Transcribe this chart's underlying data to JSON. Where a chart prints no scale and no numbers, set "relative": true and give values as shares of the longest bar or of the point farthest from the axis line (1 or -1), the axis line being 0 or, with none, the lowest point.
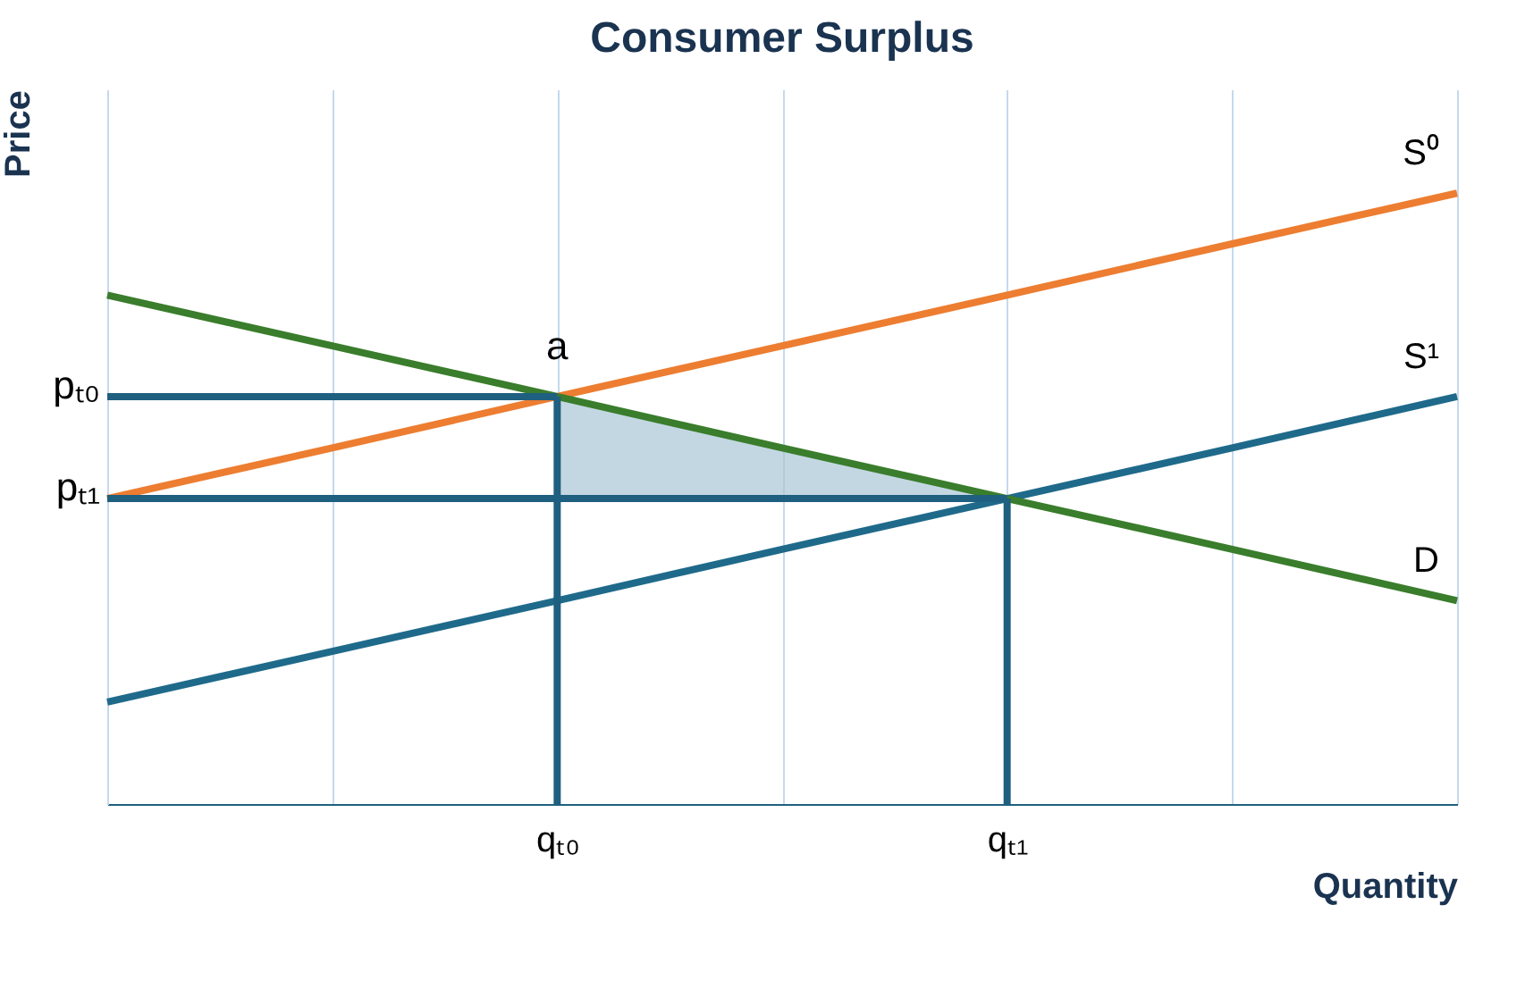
{
  "chart_data": {
    "type": "line",
    "title": "Consumer Surplus",
    "xlabel": "Quantity",
    "ylabel": "Price",
    "relative": true,
    "grid": "x",
    "categories": [
      null,
      null,
      "qₜ₀",
      null,
      "qₜ₁",
      null,
      null
    ],
    "series": [
      {
        "name": "S⁰",
        "color": "#ed7d31",
        "values": [
          0.5,
          0.583,
          0.667,
          0.75,
          0.833,
          0.917,
          1
        ]
      },
      {
        "name": "S¹",
        "color": "#1f6a8a",
        "values": [
          0.167,
          0.25,
          0.333,
          0.417,
          0.5,
          0.583,
          0.667
        ]
      },
      {
        "name": "D",
        "color": "#3a7d2c",
        "values": [
          0.833,
          0.75,
          0.667,
          0.583,
          0.5,
          0.417,
          0.333
        ]
      },
      {
        "name": "pₜ₀",
        "color": "#1f5f7f",
        "values": [
          0.667,
          0.667,
          0.667,
          null,
          null,
          null,
          null
        ]
      },
      {
        "name": "pₜ₁",
        "color": "#1f5f7f",
        "values": [
          0.5,
          0.5,
          0.5,
          0.5,
          0.5,
          null,
          null
        ],
        "lower": [
          null,
          null,
          0.5,
          0.5,
          0.5,
          null,
          null
        ],
        "upper": [
          null,
          null,
          0.667,
          0.583,
          0.5,
          null,
          null
        ]
      },
      {
        "color": "#1f5f7f",
        "x": [
          "qₜ₀",
          "qₜ₀"
        ],
        "values": [
          0,
          0.667
        ]
      },
      {
        "color": "#1f5f7f",
        "x": [
          "qₜ₁",
          "qₜ₁"
        ],
        "values": [
          0,
          0.5
        ]
      }
    ],
    "annotations": [
      {
        "text": "a",
        "x": "qₜ₀",
        "y": 0.667
      }
    ]
  }
}
